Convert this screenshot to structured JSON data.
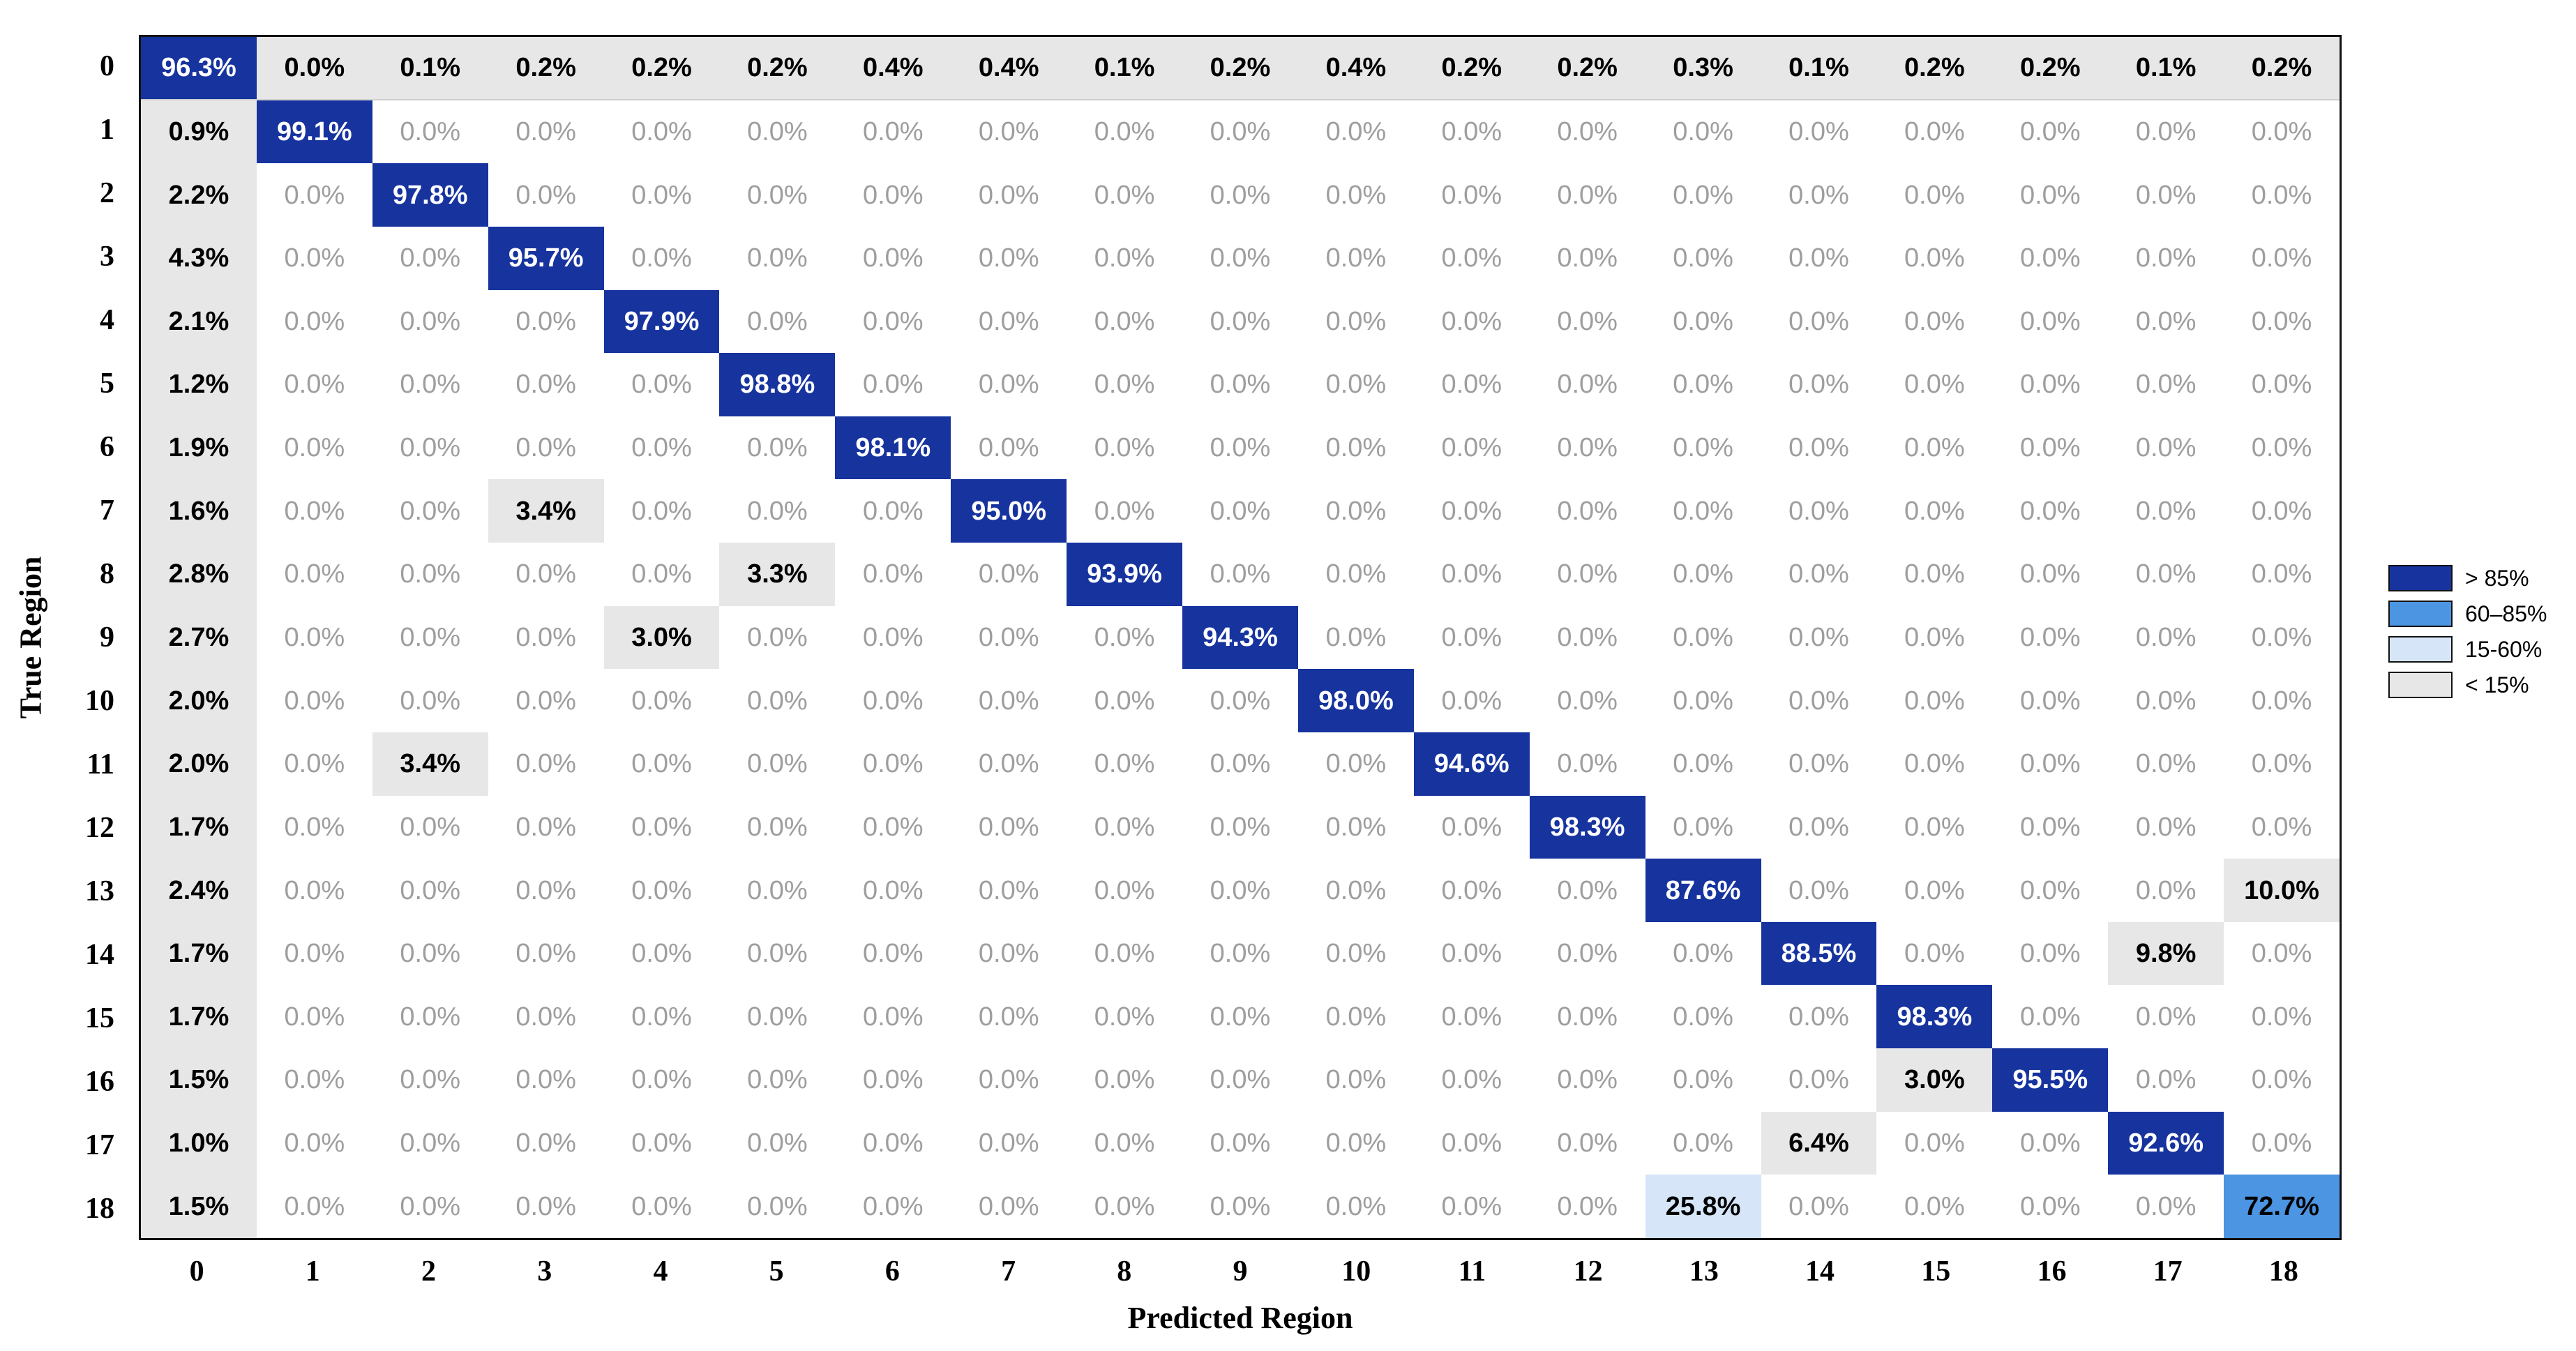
{
  "chart_data": {
    "type": "heatmap",
    "title": "",
    "xlabel": "Predicted Region",
    "ylabel": "True Region",
    "x_ticks": [
      "0",
      "1",
      "2",
      "3",
      "4",
      "5",
      "6",
      "7",
      "8",
      "9",
      "10",
      "11",
      "12",
      "13",
      "14",
      "15",
      "16",
      "17",
      "18"
    ],
    "y_ticks": [
      "0",
      "1",
      "2",
      "3",
      "4",
      "5",
      "6",
      "7",
      "8",
      "9",
      "10",
      "11",
      "12",
      "13",
      "14",
      "15",
      "16",
      "17",
      "18"
    ],
    "value_format": "percent_one_decimal",
    "matrix": [
      [
        96.3,
        0.0,
        0.1,
        0.2,
        0.2,
        0.2,
        0.4,
        0.4,
        0.1,
        0.2,
        0.4,
        0.2,
        0.2,
        0.3,
        0.1,
        0.2,
        0.2,
        0.1,
        0.2
      ],
      [
        0.9,
        99.1,
        0.0,
        0.0,
        0.0,
        0.0,
        0.0,
        0.0,
        0.0,
        0.0,
        0.0,
        0.0,
        0.0,
        0.0,
        0.0,
        0.0,
        0.0,
        0.0,
        0.0
      ],
      [
        2.2,
        0.0,
        97.8,
        0.0,
        0.0,
        0.0,
        0.0,
        0.0,
        0.0,
        0.0,
        0.0,
        0.0,
        0.0,
        0.0,
        0.0,
        0.0,
        0.0,
        0.0,
        0.0
      ],
      [
        4.3,
        0.0,
        0.0,
        95.7,
        0.0,
        0.0,
        0.0,
        0.0,
        0.0,
        0.0,
        0.0,
        0.0,
        0.0,
        0.0,
        0.0,
        0.0,
        0.0,
        0.0,
        0.0
      ],
      [
        2.1,
        0.0,
        0.0,
        0.0,
        97.9,
        0.0,
        0.0,
        0.0,
        0.0,
        0.0,
        0.0,
        0.0,
        0.0,
        0.0,
        0.0,
        0.0,
        0.0,
        0.0,
        0.0
      ],
      [
        1.2,
        0.0,
        0.0,
        0.0,
        0.0,
        98.8,
        0.0,
        0.0,
        0.0,
        0.0,
        0.0,
        0.0,
        0.0,
        0.0,
        0.0,
        0.0,
        0.0,
        0.0,
        0.0
      ],
      [
        1.9,
        0.0,
        0.0,
        0.0,
        0.0,
        0.0,
        98.1,
        0.0,
        0.0,
        0.0,
        0.0,
        0.0,
        0.0,
        0.0,
        0.0,
        0.0,
        0.0,
        0.0,
        0.0
      ],
      [
        1.6,
        0.0,
        0.0,
        3.4,
        0.0,
        0.0,
        0.0,
        95.0,
        0.0,
        0.0,
        0.0,
        0.0,
        0.0,
        0.0,
        0.0,
        0.0,
        0.0,
        0.0,
        0.0
      ],
      [
        2.8,
        0.0,
        0.0,
        0.0,
        0.0,
        3.3,
        0.0,
        0.0,
        93.9,
        0.0,
        0.0,
        0.0,
        0.0,
        0.0,
        0.0,
        0.0,
        0.0,
        0.0,
        0.0
      ],
      [
        2.7,
        0.0,
        0.0,
        0.0,
        3.0,
        0.0,
        0.0,
        0.0,
        0.0,
        94.3,
        0.0,
        0.0,
        0.0,
        0.0,
        0.0,
        0.0,
        0.0,
        0.0,
        0.0
      ],
      [
        2.0,
        0.0,
        0.0,
        0.0,
        0.0,
        0.0,
        0.0,
        0.0,
        0.0,
        0.0,
        98.0,
        0.0,
        0.0,
        0.0,
        0.0,
        0.0,
        0.0,
        0.0,
        0.0
      ],
      [
        2.0,
        0.0,
        3.4,
        0.0,
        0.0,
        0.0,
        0.0,
        0.0,
        0.0,
        0.0,
        0.0,
        94.6,
        0.0,
        0.0,
        0.0,
        0.0,
        0.0,
        0.0,
        0.0
      ],
      [
        1.7,
        0.0,
        0.0,
        0.0,
        0.0,
        0.0,
        0.0,
        0.0,
        0.0,
        0.0,
        0.0,
        0.0,
        98.3,
        0.0,
        0.0,
        0.0,
        0.0,
        0.0,
        0.0
      ],
      [
        2.4,
        0.0,
        0.0,
        0.0,
        0.0,
        0.0,
        0.0,
        0.0,
        0.0,
        0.0,
        0.0,
        0.0,
        0.0,
        87.6,
        0.0,
        0.0,
        0.0,
        0.0,
        10.0
      ],
      [
        1.7,
        0.0,
        0.0,
        0.0,
        0.0,
        0.0,
        0.0,
        0.0,
        0.0,
        0.0,
        0.0,
        0.0,
        0.0,
        0.0,
        88.5,
        0.0,
        0.0,
        9.8,
        0.0
      ],
      [
        1.7,
        0.0,
        0.0,
        0.0,
        0.0,
        0.0,
        0.0,
        0.0,
        0.0,
        0.0,
        0.0,
        0.0,
        0.0,
        0.0,
        0.0,
        98.3,
        0.0,
        0.0,
        0.0
      ],
      [
        1.5,
        0.0,
        0.0,
        0.0,
        0.0,
        0.0,
        0.0,
        0.0,
        0.0,
        0.0,
        0.0,
        0.0,
        0.0,
        0.0,
        0.0,
        3.0,
        95.5,
        0.0,
        0.0
      ],
      [
        1.0,
        0.0,
        0.0,
        0.0,
        0.0,
        0.0,
        0.0,
        0.0,
        0.0,
        0.0,
        0.0,
        0.0,
        0.0,
        0.0,
        6.4,
        0.0,
        0.0,
        92.6,
        0.0
      ],
      [
        1.5,
        0.0,
        0.0,
        0.0,
        0.0,
        0.0,
        0.0,
        0.0,
        0.0,
        0.0,
        0.0,
        0.0,
        0.0,
        25.8,
        0.0,
        0.0,
        0.0,
        0.0,
        72.7
      ]
    ],
    "legend": [
      {
        "label": "> 85%",
        "palette_key": "gt85"
      },
      {
        "label": "60–85%",
        "palette_key": "b60_85"
      },
      {
        "label": "15-60%",
        "palette_key": "b15_60"
      },
      {
        "label": "< 15%",
        "palette_key": "lt15"
      }
    ],
    "legend_position": "right-center",
    "palette": {
      "gt85": "#16339E",
      "b60_85": "#4C95E2",
      "b15_60": "#D6E6F8",
      "lt15": "#E7E7E7",
      "zero_bg": "#FFFFFF",
      "zero_text": "#9E9E9E",
      "text": "#000000",
      "diag_text": "#FFFFFF",
      "border": "#111111"
    },
    "color_rule": "cells >85 dark blue; 60-85 medium blue; 15-60 light blue; <15 but nonzero (and all of row 0 / column 0) light gray; exact zeros white with gray text"
  }
}
